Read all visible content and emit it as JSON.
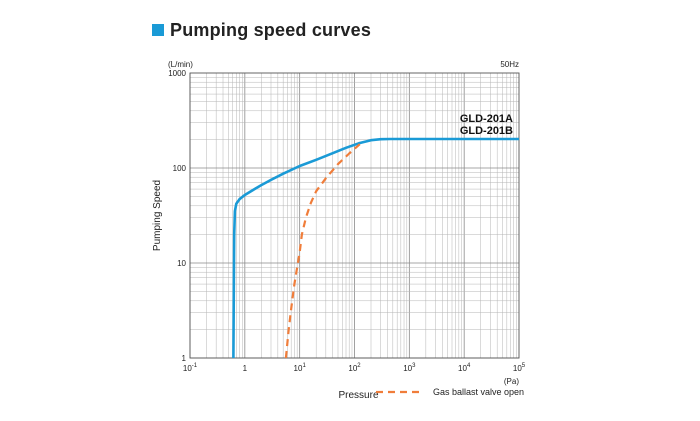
{
  "header": {
    "title": "Pumping speed curves",
    "accent_color": "#1a9ad6"
  },
  "chart_data": {
    "type": "line",
    "xscale": "log",
    "yscale": "log",
    "xlim": [
      0.1,
      100000
    ],
    "ylim": [
      1,
      1000
    ],
    "xlabel": "Pressure",
    "ylabel": "Pumping Speed",
    "xunit": "(Pa)",
    "yunit": "(L/min)",
    "frequency_label": "50Hz",
    "grid": true,
    "x_ticks": [
      {
        "base": "10",
        "exp": "-1"
      },
      {
        "base": "1",
        "exp": ""
      },
      {
        "base": "10",
        "exp": "1"
      },
      {
        "base": "10",
        "exp": "2"
      },
      {
        "base": "10",
        "exp": "3"
      },
      {
        "base": "10",
        "exp": "4"
      },
      {
        "base": "10",
        "exp": "5"
      }
    ],
    "y_ticks": [
      "1",
      "10",
      "100",
      "1000"
    ],
    "series_labels": [
      "GLD-201A",
      "GLD-201B"
    ],
    "series": [
      {
        "name": "GLD-201A / GLD-201B",
        "color": "#1a9ad6",
        "style": "solid",
        "x": [
          0.62,
          0.63,
          0.64,
          0.66,
          0.7,
          0.8,
          1.0,
          1.5,
          2,
          3,
          5,
          10,
          20,
          40,
          70,
          120,
          200,
          300,
          450,
          600,
          1000,
          10000,
          100000
        ],
        "y": [
          1,
          5,
          20,
          35,
          42,
          47,
          52,
          60,
          66,
          75,
          87,
          105,
          122,
          143,
          163,
          182,
          196,
          201,
          202,
          202,
          202,
          202,
          202
        ]
      },
      {
        "name": "Gas ballast valve open",
        "color": "#f07d3a",
        "style": "dashed",
        "x": [
          5.6,
          6.3,
          7.1,
          8.0,
          9.0,
          10,
          11,
          13,
          16,
          20,
          30,
          50,
          80,
          125
        ],
        "y": [
          1,
          2,
          3.5,
          6,
          9,
          13,
          20,
          30,
          43,
          57,
          78,
          110,
          142,
          178
        ]
      }
    ],
    "legend": {
      "position": "bottom-right",
      "entries": [
        "Gas ballast valve open"
      ]
    }
  }
}
